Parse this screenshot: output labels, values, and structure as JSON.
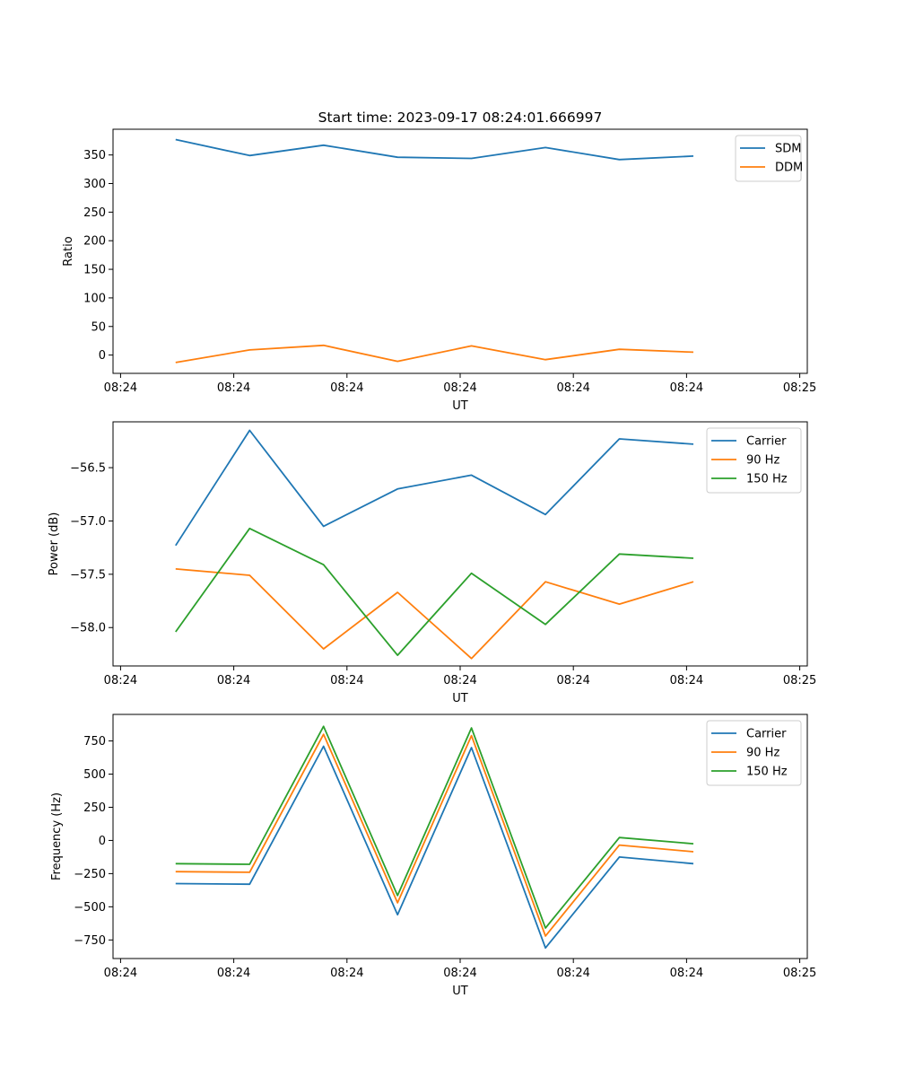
{
  "chart_data": [
    {
      "type": "line",
      "title": "Start time: 2023-09-17 08:24:01.666997",
      "xlabel": "UT",
      "ylabel": "Ratio",
      "xlim": [
        -0.1,
        9.1
      ],
      "xticks": [
        0,
        1.5,
        3,
        4.5,
        6,
        7.5,
        9
      ],
      "xtick_labels": [
        "08:24",
        "08:24",
        "08:24",
        "08:24",
        "08:24",
        "08:24",
        "08:25"
      ],
      "ylim": [
        -32,
        395
      ],
      "yticks": [
        0,
        50,
        100,
        150,
        200,
        250,
        300,
        350
      ],
      "ytick_labels": [
        "0",
        "50",
        "100",
        "150",
        "200",
        "250",
        "300",
        "350"
      ],
      "legend_position": "top-right",
      "x": [
        0.73,
        1.71,
        2.69,
        3.67,
        4.65,
        5.63,
        6.61,
        7.59
      ],
      "series": [
        {
          "name": "SDM",
          "color": "#1f77b4",
          "values": [
            377,
            349,
            367,
            346,
            344,
            363,
            342,
            348
          ]
        },
        {
          "name": "DDM",
          "color": "#ff7f0e",
          "values": [
            -13,
            9,
            17,
            -11,
            16,
            -8,
            10,
            5
          ]
        }
      ]
    },
    {
      "type": "line",
      "title": "",
      "xlabel": "UT",
      "ylabel": "Power (dB)",
      "xlim": [
        -0.1,
        9.1
      ],
      "xticks": [
        0,
        1.5,
        3,
        4.5,
        6,
        7.5,
        9
      ],
      "xtick_labels": [
        "08:24",
        "08:24",
        "08:24",
        "08:24",
        "08:24",
        "08:24",
        "08:25"
      ],
      "ylim": [
        -58.36,
        -56.07
      ],
      "yticks": [
        -58.0,
        -57.5,
        -57.0,
        -56.5
      ],
      "ytick_labels": [
        "−58.0",
        "−57.5",
        "−57.0",
        "−56.5"
      ],
      "legend_position": "top-right",
      "x": [
        0.73,
        1.71,
        2.69,
        3.67,
        4.65,
        5.63,
        6.61,
        7.59
      ],
      "series": [
        {
          "name": "Carrier",
          "color": "#1f77b4",
          "values": [
            -57.23,
            -56.15,
            -57.05,
            -56.7,
            -56.57,
            -56.94,
            -56.23,
            -56.28
          ]
        },
        {
          "name": "90 Hz",
          "color": "#ff7f0e",
          "values": [
            -57.45,
            -57.51,
            -58.2,
            -57.67,
            -58.29,
            -57.57,
            -57.78,
            -57.57
          ]
        },
        {
          "name": "150 Hz",
          "color": "#2ca02c",
          "values": [
            -58.04,
            -57.07,
            -57.41,
            -58.26,
            -57.49,
            -57.97,
            -57.31,
            -57.35
          ]
        }
      ]
    },
    {
      "type": "line",
      "title": "",
      "xlabel": "UT",
      "ylabel": "Frequency (Hz)",
      "xlim": [
        -0.1,
        9.1
      ],
      "xticks": [
        0,
        1.5,
        3,
        4.5,
        6,
        7.5,
        9
      ],
      "xtick_labels": [
        "08:24",
        "08:24",
        "08:24",
        "08:24",
        "08:24",
        "08:24",
        "08:25"
      ],
      "ylim": [
        -890,
        950
      ],
      "yticks": [
        -750,
        -500,
        -250,
        0,
        250,
        500,
        750
      ],
      "ytick_labels": [
        "−750",
        "−500",
        "−250",
        "0",
        "250",
        "500",
        "750"
      ],
      "legend_position": "top-right",
      "x": [
        0.73,
        1.71,
        2.69,
        3.67,
        4.65,
        5.63,
        6.61,
        7.59
      ],
      "series": [
        {
          "name": "Carrier",
          "color": "#1f77b4",
          "values": [
            -325,
            -330,
            710,
            -560,
            700,
            -810,
            -125,
            -175
          ]
        },
        {
          "name": "90 Hz",
          "color": "#ff7f0e",
          "values": [
            -235,
            -240,
            800,
            -470,
            790,
            -720,
            -35,
            -85
          ]
        },
        {
          "name": "150 Hz",
          "color": "#2ca02c",
          "values": [
            -175,
            -180,
            860,
            -415,
            848,
            -660,
            22,
            -25
          ]
        }
      ]
    }
  ]
}
